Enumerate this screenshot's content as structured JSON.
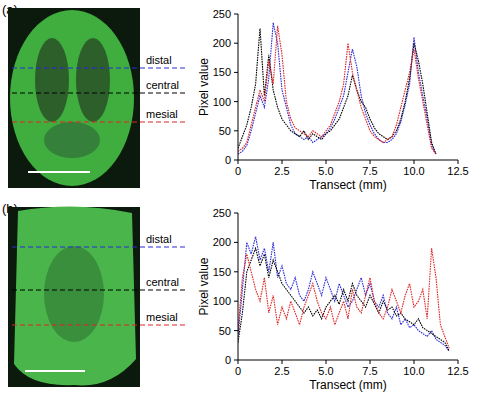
{
  "chart_data": [
    {
      "type": "line",
      "title": "(a)",
      "xlabel": "Transect (mm)",
      "ylabel": "Pixel value",
      "xlim": [
        0,
        12.5
      ],
      "xticks": [
        0,
        2.5,
        {
          "value": 5,
          "label": "5.0"
        },
        7.5,
        {
          "value": 10,
          "label": "10.0"
        },
        12.5
      ],
      "ylim": [
        0,
        250
      ],
      "yticks": [
        0,
        50,
        100,
        150,
        200,
        250
      ],
      "grid": false,
      "x": [
        0,
        0.25,
        0.5,
        0.75,
        1,
        1.25,
        1.5,
        1.75,
        2,
        2.25,
        2.5,
        2.75,
        3,
        3.25,
        3.5,
        3.75,
        4,
        4.25,
        4.5,
        4.75,
        5,
        5.25,
        5.5,
        5.75,
        6,
        6.25,
        6.5,
        6.75,
        7,
        7.25,
        7.5,
        7.75,
        8,
        8.25,
        8.5,
        8.75,
        9,
        9.25,
        9.5,
        9.75,
        10,
        10.25,
        10.5,
        10.75,
        11,
        11.25
      ],
      "series": [
        {
          "name": "distal",
          "color": "#2b2bd8",
          "line_style": "dotted",
          "values": [
            10,
            15,
            25,
            50,
            80,
            110,
            90,
            140,
            235,
            200,
            120,
            90,
            60,
            45,
            40,
            35,
            40,
            30,
            35,
            40,
            45,
            55,
            70,
            90,
            110,
            150,
            190,
            160,
            110,
            80,
            60,
            45,
            35,
            30,
            30,
            35,
            45,
            65,
            95,
            130,
            210,
            150,
            110,
            70,
            25,
            10
          ]
        },
        {
          "name": "central",
          "color": "#000000",
          "line_style": "dotted",
          "values": [
            20,
            40,
            60,
            90,
            130,
            225,
            110,
            180,
            120,
            90,
            70,
            60,
            50,
            45,
            40,
            50,
            35,
            45,
            40,
            35,
            45,
            50,
            60,
            70,
            90,
            110,
            145,
            120,
            100,
            90,
            70,
            55,
            45,
            40,
            35,
            40,
            50,
            70,
            100,
            140,
            200,
            170,
            130,
            80,
            30,
            10
          ]
        },
        {
          "name": "mesial",
          "color": "#e02424",
          "line_style": "dotted",
          "values": [
            15,
            20,
            30,
            60,
            90,
            120,
            100,
            170,
            130,
            230,
            180,
            100,
            70,
            55,
            50,
            45,
            40,
            50,
            45,
            40,
            50,
            60,
            80,
            100,
            130,
            200,
            150,
            120,
            90,
            70,
            50,
            40,
            35,
            30,
            35,
            40,
            60,
            90,
            120,
            150,
            190,
            140,
            100,
            60,
            20,
            10
          ]
        }
      ]
    },
    {
      "type": "line",
      "title": "(b)",
      "xlabel": "Transect (mm)",
      "ylabel": "Pixel value",
      "xlim": [
        0,
        12.5
      ],
      "xticks": [
        0,
        2.5,
        {
          "value": 5,
          "label": "5.0"
        },
        7.5,
        {
          "value": 10,
          "label": "10.0"
        },
        12.5
      ],
      "ylim": [
        0,
        250
      ],
      "yticks": [
        0,
        50,
        100,
        150,
        200,
        250
      ],
      "grid": false,
      "x": [
        0,
        0.25,
        0.5,
        0.75,
        1,
        1.25,
        1.5,
        1.75,
        2,
        2.25,
        2.5,
        2.75,
        3,
        3.25,
        3.5,
        3.75,
        4,
        4.25,
        4.5,
        4.75,
        5,
        5.25,
        5.5,
        5.75,
        6,
        6.25,
        6.5,
        6.75,
        7,
        7.25,
        7.5,
        7.75,
        8,
        8.25,
        8.5,
        8.75,
        9,
        9.25,
        9.5,
        9.75,
        10,
        10.25,
        10.5,
        10.75,
        11,
        11.25,
        11.5,
        11.75,
        12
      ],
      "series": [
        {
          "name": "distal",
          "color": "#2b2bd8",
          "line_style": "dotted",
          "values": [
            40,
            120,
            200,
            180,
            210,
            170,
            190,
            150,
            200,
            140,
            160,
            130,
            120,
            140,
            110,
            100,
            120,
            150,
            130,
            110,
            140,
            120,
            100,
            130,
            110,
            90,
            100,
            120,
            140,
            110,
            130,
            100,
            90,
            110,
            80,
            70,
            90,
            60,
            70,
            55,
            60,
            50,
            45,
            40,
            50,
            35,
            30,
            25,
            15
          ]
        },
        {
          "name": "central",
          "color": "#000000",
          "line_style": "dotted",
          "values": [
            30,
            80,
            150,
            170,
            190,
            160,
            180,
            140,
            170,
            150,
            130,
            120,
            110,
            100,
            90,
            80,
            90,
            75,
            85,
            70,
            90,
            100,
            110,
            95,
            120,
            100,
            130,
            110,
            100,
            90,
            110,
            95,
            80,
            100,
            85,
            90,
            75,
            80,
            70,
            65,
            60,
            70,
            55,
            50,
            45,
            40,
            35,
            30,
            15
          ]
        },
        {
          "name": "mesial",
          "color": "#e02424",
          "line_style": "dotted",
          "values": [
            50,
            140,
            180,
            150,
            120,
            100,
            140,
            80,
            110,
            60,
            90,
            70,
            100,
            80,
            60,
            90,
            110,
            130,
            100,
            80,
            70,
            90,
            60,
            80,
            100,
            70,
            120,
            90,
            80,
            110,
            140,
            100,
            80,
            70,
            90,
            120,
            100,
            80,
            110,
            130,
            90,
            100,
            120,
            70,
            190,
            140,
            60,
            40,
            20
          ]
        }
      ]
    }
  ]
}
